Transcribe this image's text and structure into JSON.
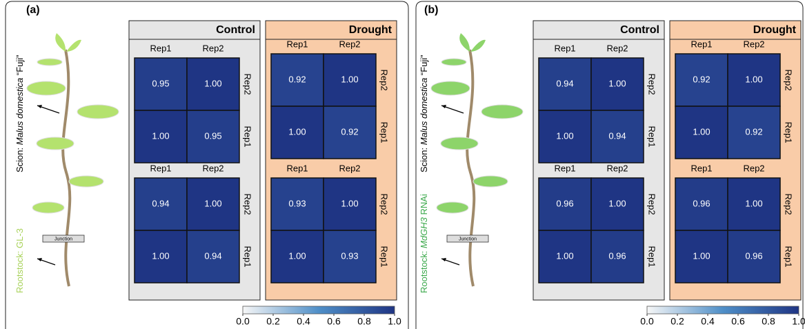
{
  "chart_data": [
    {
      "type": "heatmap",
      "label": "(a)",
      "scion": [
        {
          "text": "Scion: "
        },
        {
          "text": "Malus domestica",
          "italic": true
        },
        {
          "text": " “Fuji”"
        }
      ],
      "rootstock": [
        {
          "text": "Rootstock: "
        },
        {
          "text": "GL-3"
        }
      ],
      "rootstock_color": "#a8d25a",
      "junction": "Junction",
      "groups": [
        {
          "name": "Control",
          "color": "#e6e6e6",
          "matrices": [
            {
              "x": [
                "Rep1",
                "Rep2"
              ],
              "y": [
                "Rep2",
                "Rep1"
              ],
              "values": [
                [
                  0.95,
                  1.0
                ],
                [
                  1.0,
                  0.95
                ]
              ],
              "value_labels": [
                [
                  "0.95",
                  "1.00"
                ],
                [
                  "1.00",
                  "0.95"
                ]
              ]
            },
            {
              "x": [
                "Rep1",
                "Rep2"
              ],
              "y": [
                "Rep2",
                "Rep1"
              ],
              "values": [
                [
                  0.94,
                  1.0
                ],
                [
                  1.0,
                  0.94
                ]
              ],
              "value_labels": [
                [
                  "0.94",
                  "1.00"
                ],
                [
                  "1.00",
                  "0.94"
                ]
              ]
            }
          ]
        },
        {
          "name": "Drought",
          "color": "#f9cca8",
          "matrices": [
            {
              "x": [
                "Rep1",
                "Rep2"
              ],
              "y": [
                "Rep2",
                "Rep1"
              ],
              "values": [
                [
                  0.92,
                  1.0
                ],
                [
                  1.0,
                  0.92
                ]
              ],
              "value_labels": [
                [
                  "0.92",
                  "1.00"
                ],
                [
                  "1.00",
                  "0.92"
                ]
              ]
            },
            {
              "x": [
                "Rep1",
                "Rep2"
              ],
              "y": [
                "Rep2",
                "Rep1"
              ],
              "values": [
                [
                  0.93,
                  1.0
                ],
                [
                  1.0,
                  0.93
                ]
              ],
              "value_labels": [
                [
                  "0.93",
                  "1.00"
                ],
                [
                  "1.00",
                  "0.93"
                ]
              ]
            }
          ]
        }
      ],
      "colorbar": {
        "zlim": [
          0,
          1
        ],
        "colors": [
          "#f7f7f7",
          "#4f8fc8",
          "#1f3584"
        ],
        "zticks": [
          {
            "value": 0,
            "label": "0.0"
          },
          0.2,
          0.4,
          0.6,
          0.8,
          {
            "value": 1,
            "label": "1.0"
          }
        ]
      }
    },
    {
      "type": "heatmap",
      "label": "(b)",
      "scion": [
        {
          "text": "Scion: "
        },
        {
          "text": "Malus domestica",
          "italic": true
        },
        {
          "text": " “Fuji”"
        }
      ],
      "rootstock": [
        {
          "text": "Rootstock: "
        },
        {
          "text": "MdGH3",
          "italic": true
        },
        {
          "text": " RNAi"
        }
      ],
      "rootstock_color": "#3aa84a",
      "junction": "Junction",
      "groups": [
        {
          "name": "Control",
          "color": "#e6e6e6",
          "matrices": [
            {
              "x": [
                "Rep1",
                "Rep2"
              ],
              "y": [
                "Rep2",
                "Rep1"
              ],
              "values": [
                [
                  0.94,
                  1.0
                ],
                [
                  1.0,
                  0.94
                ]
              ],
              "value_labels": [
                [
                  "0.94",
                  "1.00"
                ],
                [
                  "1.00",
                  "0.94"
                ]
              ]
            },
            {
              "x": [
                "Rep1",
                "Rep2"
              ],
              "y": [
                "Rep2",
                "Rep1"
              ],
              "values": [
                [
                  0.96,
                  1.0
                ],
                [
                  1.0,
                  0.96
                ]
              ],
              "value_labels": [
                [
                  "0.96",
                  "1.00"
                ],
                [
                  "1.00",
                  "0.96"
                ]
              ]
            }
          ]
        },
        {
          "name": "Drought",
          "color": "#f9cca8",
          "matrices": [
            {
              "x": [
                "Rep1",
                "Rep2"
              ],
              "y": [
                "Rep2",
                "Rep1"
              ],
              "values": [
                [
                  0.92,
                  1.0
                ],
                [
                  1.0,
                  0.92
                ]
              ],
              "value_labels": [
                [
                  "0.92",
                  "1.00"
                ],
                [
                  "1.00",
                  "0.92"
                ]
              ]
            },
            {
              "x": [
                "Rep1",
                "Rep2"
              ],
              "y": [
                "Rep2",
                "Rep1"
              ],
              "values": [
                [
                  0.96,
                  1.0
                ],
                [
                  1.0,
                  0.96
                ]
              ],
              "value_labels": [
                [
                  "0.96",
                  "1.00"
                ],
                [
                  "1.00",
                  "0.96"
                ]
              ]
            }
          ]
        }
      ],
      "colorbar": {
        "zlim": [
          0,
          1
        ],
        "colors": [
          "#f7f7f7",
          "#4f8fc8",
          "#1f3584"
        ],
        "zticks": [
          {
            "value": 0,
            "label": "0.0"
          },
          0.2,
          0.4,
          0.6,
          0.8,
          {
            "value": 1,
            "label": "1.0"
          }
        ]
      }
    }
  ]
}
